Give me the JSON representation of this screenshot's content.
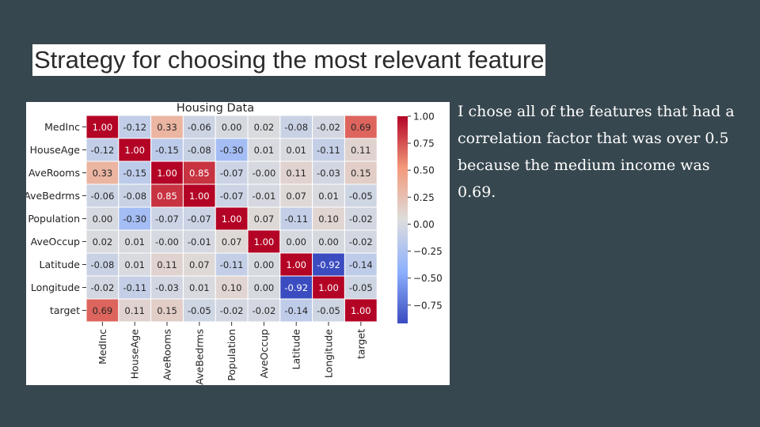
{
  "slide": {
    "title": "Strategy for choosing the most relevant feature",
    "body": "I chose all of the features that had a correlation factor that was over 0.5 because the medium income was 0.69."
  },
  "colors": {
    "background": "#37474f",
    "title_box": "#ffffff",
    "cmap_low": "#3b4cc0",
    "cmap_mid": "#dddddd",
    "cmap_high": "#b40426"
  },
  "chart_data": {
    "type": "heatmap",
    "title": "Housing Data",
    "row_labels": [
      "MedInc",
      "HouseAge",
      "AveRooms",
      "AveBedrms",
      "Population",
      "AveOccup",
      "Latitude",
      "Longitude",
      "target"
    ],
    "col_labels": [
      "MedInc",
      "HouseAge",
      "AveRooms",
      "AveBedrms",
      "Population",
      "AveOccup",
      "Latitude",
      "Longitude",
      "target"
    ],
    "values": [
      [
        1.0,
        -0.12,
        0.33,
        -0.06,
        0.0,
        0.02,
        -0.08,
        -0.02,
        0.69
      ],
      [
        -0.12,
        1.0,
        -0.15,
        -0.08,
        -0.3,
        0.01,
        0.01,
        -0.11,
        0.11
      ],
      [
        0.33,
        -0.15,
        1.0,
        0.85,
        -0.07,
        -0.0,
        0.11,
        -0.03,
        0.15
      ],
      [
        -0.06,
        -0.08,
        0.85,
        1.0,
        -0.07,
        -0.01,
        0.07,
        0.01,
        -0.05
      ],
      [
        0.0,
        -0.3,
        -0.07,
        -0.07,
        1.0,
        0.07,
        -0.11,
        0.1,
        -0.02
      ],
      [
        0.02,
        0.01,
        -0.0,
        -0.01,
        0.07,
        1.0,
        0.0,
        0.0,
        -0.02
      ],
      [
        -0.08,
        0.01,
        0.11,
        0.07,
        -0.11,
        0.0,
        1.0,
        -0.92,
        -0.14
      ],
      [
        -0.02,
        -0.11,
        -0.03,
        0.01,
        0.1,
        0.0,
        -0.92,
        1.0,
        -0.05
      ],
      [
        0.69,
        0.11,
        0.15,
        -0.05,
        -0.02,
        -0.02,
        -0.14,
        -0.05,
        1.0
      ]
    ],
    "value_labels": [
      [
        "1.00",
        "-0.12",
        "0.33",
        "-0.06",
        "0.00",
        "0.02",
        "-0.08",
        "-0.02",
        "0.69"
      ],
      [
        "-0.12",
        "1.00",
        "-0.15",
        "-0.08",
        "-0.30",
        "0.01",
        "0.01",
        "-0.11",
        "0.11"
      ],
      [
        "0.33",
        "-0.15",
        "1.00",
        "0.85",
        "-0.07",
        "-0.00",
        "0.11",
        "-0.03",
        "0.15"
      ],
      [
        "-0.06",
        "-0.08",
        "0.85",
        "1.00",
        "-0.07",
        "-0.01",
        "0.07",
        "0.01",
        "-0.05"
      ],
      [
        "0.00",
        "-0.30",
        "-0.07",
        "-0.07",
        "1.00",
        "0.07",
        "-0.11",
        "0.10",
        "-0.02"
      ],
      [
        "0.02",
        "0.01",
        "-0.00",
        "-0.01",
        "0.07",
        "1.00",
        "0.00",
        "0.00",
        "-0.02"
      ],
      [
        "-0.08",
        "0.01",
        "0.11",
        "0.07",
        "-0.11",
        "0.00",
        "1.00",
        "-0.92",
        "-0.14"
      ],
      [
        "-0.02",
        "-0.11",
        "-0.03",
        "0.01",
        "0.10",
        "0.00",
        "-0.92",
        "1.00",
        "-0.05"
      ],
      [
        "0.69",
        "0.11",
        "0.15",
        "-0.05",
        "-0.02",
        "-0.02",
        "-0.14",
        "-0.05",
        "1.00"
      ]
    ],
    "colorbar": {
      "range": [
        -0.92,
        1.0
      ],
      "ticks": [
        1.0,
        0.75,
        0.5,
        0.25,
        0.0,
        -0.25,
        -0.5,
        -0.75
      ],
      "tick_labels": [
        "1.00",
        "0.75",
        "0.50",
        "0.25",
        "0.00",
        "−0.25",
        "−0.50",
        "−0.75"
      ]
    },
    "colormap": "coolwarm",
    "annotated": true
  }
}
